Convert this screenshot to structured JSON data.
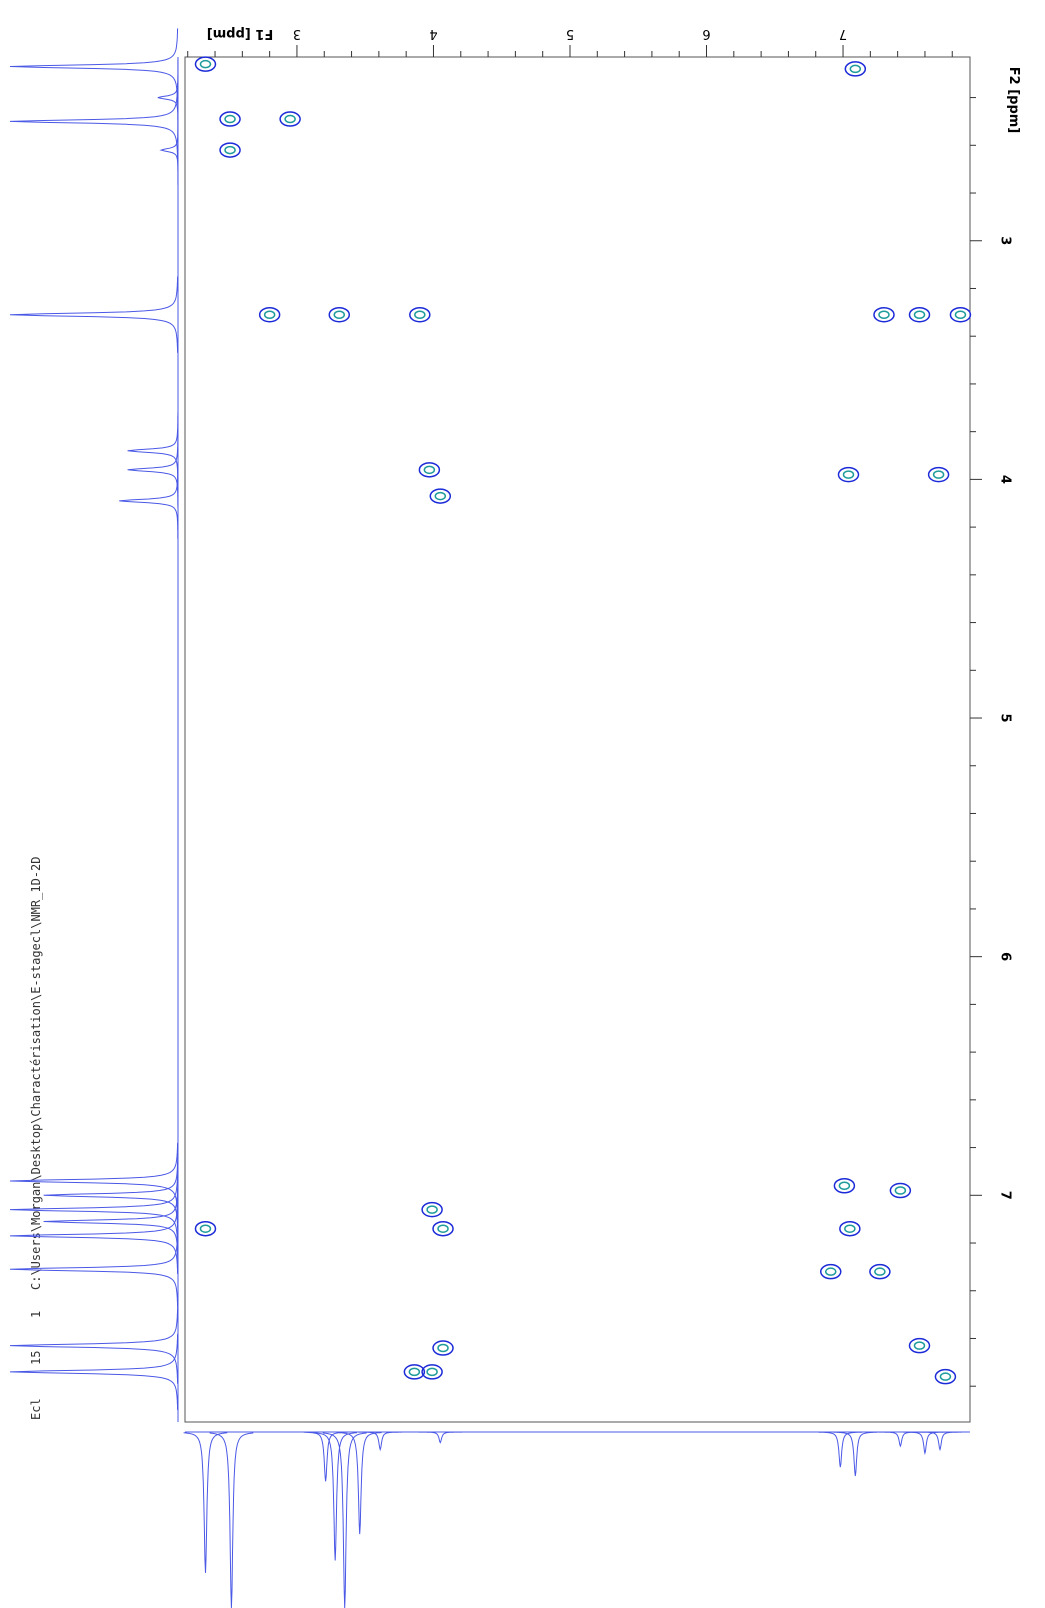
{
  "chart_data": {
    "type": "nmr2d",
    "x_label": "F1 [ppm]",
    "y_label": "F2 [ppm]",
    "info": [
      "Ecl",
      "15",
      "1",
      "C:\\Users\\Morgan\\Desktop\\Charactérisation\\E-stagecl\\NMR_1D-2D"
    ],
    "xlim": [
      2.18,
      7.93
    ],
    "ylim": [
      2.23,
      7.95
    ],
    "xticks": [
      3,
      4,
      5,
      6,
      7
    ],
    "yticks": [
      3,
      4,
      5,
      6,
      7
    ],
    "xminorticks": [
      2.2,
      2.4,
      2.6,
      2.8,
      3.2,
      3.4,
      3.6,
      3.8,
      4.2,
      4.4,
      4.6,
      4.8,
      5.2,
      5.4,
      5.6,
      5.8,
      6.2,
      6.4,
      6.6,
      6.8,
      7.2,
      7.4,
      7.6,
      7.8
    ],
    "yminorticks": [
      2.4,
      2.6,
      2.8,
      3.2,
      3.4,
      3.6,
      3.8,
      4.2,
      4.4,
      4.6,
      4.8,
      5.2,
      5.4,
      5.6,
      5.8,
      6.2,
      6.4,
      6.6,
      6.8,
      7.2,
      7.4,
      7.6,
      7.8
    ],
    "contour_colors": [
      "#1c2bd8",
      "#1f9b9b"
    ],
    "projection_color": "#4a58e6",
    "cross_peaks": {
      "x": [
        2.33,
        2.51,
        2.51,
        2.95,
        3.31,
        2.8,
        3.9,
        3.97,
        4.05,
        7.01,
        7.05,
        7.27,
        7.56,
        7.75,
        7.09,
        2.33,
        7.3,
        7.56,
        7.86,
        7.04,
        7.7,
        3.99,
        4.07,
        4.07,
        3.99,
        3.86,
        7.42,
        6.91
      ],
      "y": [
        2.26,
        2.49,
        2.62,
        2.49,
        3.31,
        3.31,
        3.31,
        3.96,
        4.07,
        6.96,
        7.14,
        7.32,
        7.63,
        7.76,
        2.28,
        7.14,
        3.31,
        3.31,
        3.31,
        3.98,
        3.98,
        7.06,
        7.14,
        7.64,
        7.74,
        7.74,
        6.98,
        7.32
      ]
    },
    "f2_projection": {
      "x": [
        2.27,
        2.4,
        2.5,
        2.62,
        3.31,
        3.88,
        3.96,
        4.09,
        6.94,
        7.0,
        7.06,
        7.11,
        7.17,
        7.31,
        7.63,
        7.74
      ],
      "values": [
        1.0,
        0.12,
        1.0,
        0.1,
        1.0,
        0.3,
        0.3,
        0.35,
        1.0,
        0.8,
        1.0,
        0.8,
        1.0,
        1.0,
        1.0,
        1.0
      ]
    },
    "f1_projection": {
      "x": [
        2.33,
        2.52,
        3.21,
        3.28,
        3.35,
        3.46,
        3.61,
        4.05,
        6.98,
        7.09,
        7.42,
        7.6,
        7.71
      ],
      "values": [
        0.8,
        1.0,
        0.28,
        0.73,
        1.0,
        0.58,
        0.1,
        0.06,
        0.2,
        0.25,
        0.08,
        0.12,
        0.1
      ]
    }
  }
}
